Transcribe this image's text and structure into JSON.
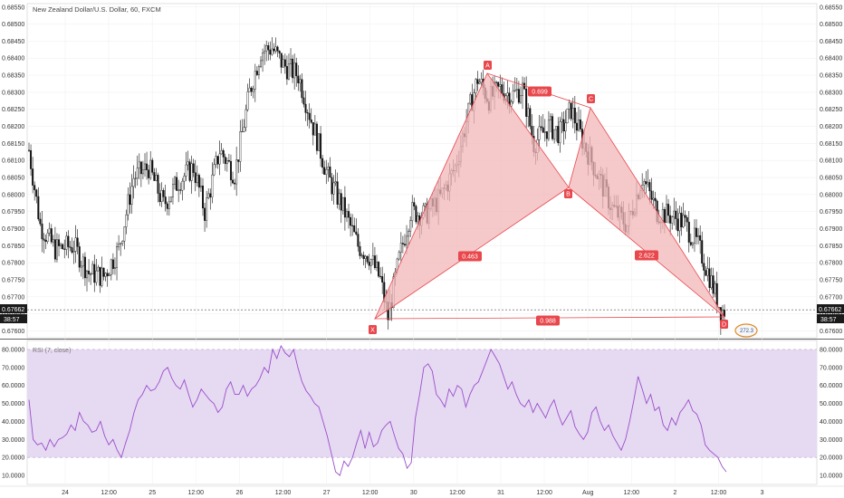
{
  "title": "New Zealand Dollar/U.S. Dollar, 60, FXCM",
  "price_panel": {
    "y_ticks": [
      "0.68550",
      "0.68500",
      "0.68450",
      "0.68400",
      "0.68350",
      "0.68300",
      "0.68250",
      "0.68200",
      "0.68150",
      "0.68100",
      "0.68050",
      "0.68000",
      "0.67950",
      "0.67900",
      "0.67850",
      "0.67800",
      "0.67750",
      "0.67700",
      "0.67650",
      "0.67600"
    ],
    "last_price": "0.67662",
    "countdown": "38:57"
  },
  "rsi_panel": {
    "label": "RSI (7, close)",
    "y_ticks": [
      "80.0000",
      "70.0000",
      "60.0000",
      "50.0000",
      "40.0000",
      "30.0000",
      "20.0000",
      "10.0000"
    ],
    "upper_band": 80,
    "lower_band": 20,
    "band_fill": "#e6d9f2",
    "line_color": "#9a4fc9"
  },
  "x_ticks": [
    "24",
    "12:00",
    "25",
    "12:00",
    "26",
    "12:00",
    "27",
    "12:00",
    "30",
    "12:00",
    "31",
    "12:00",
    "Aug",
    "12:00",
    "2",
    "12:00",
    "3"
  ],
  "pattern": {
    "color": "#e8474c",
    "fill": "#f2b6b8",
    "points": {
      "X": "X",
      "A": "A",
      "B": "B",
      "C": "C",
      "D": "D"
    },
    "ratios": {
      "xb": "0.463",
      "ac": "0.699",
      "bd": "2.622",
      "xd": "0.988"
    }
  },
  "badge": "272.3",
  "chart_data": {
    "type": "candlestick",
    "title": "New Zealand Dollar/U.S. Dollar, 60, FXCM",
    "timeframe": "60",
    "ylim": [
      0.6758,
      0.6856
    ],
    "last_close": 0.67662,
    "approx_close_path": [
      [
        0,
        0.6813
      ],
      [
        6,
        0.6791
      ],
      [
        14,
        0.6784
      ],
      [
        24,
        0.6785
      ],
      [
        32,
        0.6777
      ],
      [
        40,
        0.6776
      ],
      [
        48,
        0.6784
      ],
      [
        56,
        0.6805
      ],
      [
        64,
        0.6808
      ],
      [
        72,
        0.6797
      ],
      [
        80,
        0.6804
      ],
      [
        88,
        0.6808
      ],
      [
        94,
        0.6795
      ],
      [
        102,
        0.6813
      ],
      [
        110,
        0.6806
      ],
      [
        118,
        0.683
      ],
      [
        124,
        0.6842
      ],
      [
        130,
        0.6843
      ],
      [
        136,
        0.6838
      ],
      [
        144,
        0.6835
      ],
      [
        152,
        0.682
      ],
      [
        160,
        0.6805
      ],
      [
        168,
        0.6796
      ],
      [
        176,
        0.6785
      ],
      [
        182,
        0.6782
      ],
      [
        188,
        0.6775
      ],
      [
        192,
        0.6764
      ],
      [
        198,
        0.6781
      ],
      [
        204,
        0.6795
      ],
      [
        212,
        0.6794
      ],
      [
        220,
        0.6799
      ],
      [
        228,
        0.6808
      ],
      [
        236,
        0.6826
      ],
      [
        240,
        0.6834
      ],
      [
        246,
        0.6828
      ],
      [
        252,
        0.6831
      ],
      [
        258,
        0.6829
      ],
      [
        264,
        0.6831
      ],
      [
        270,
        0.6815
      ],
      [
        278,
        0.682
      ],
      [
        284,
        0.6818
      ],
      [
        290,
        0.6825
      ],
      [
        296,
        0.6816
      ],
      [
        304,
        0.6806
      ],
      [
        312,
        0.6796
      ],
      [
        320,
        0.6791
      ],
      [
        328,
        0.6805
      ],
      [
        336,
        0.6795
      ],
      [
        342,
        0.6794
      ],
      [
        350,
        0.6792
      ],
      [
        358,
        0.6785
      ],
      [
        364,
        0.6776
      ],
      [
        370,
        0.6766
      ]
    ],
    "rsi": {
      "name": "RSI (7, close)",
      "upper_band": 80,
      "lower_band": 20,
      "ylim": [
        5,
        85
      ],
      "values": [
        52,
        30,
        27,
        28,
        24,
        30,
        26,
        30,
        31,
        33,
        38,
        35,
        45,
        40,
        38,
        34,
        35,
        40,
        32,
        27,
        30,
        24,
        20,
        28,
        35,
        45,
        52,
        55,
        60,
        57,
        58,
        62,
        68,
        70,
        64,
        60,
        58,
        63,
        55,
        48,
        52,
        58,
        55,
        52,
        50,
        45,
        48,
        58,
        62,
        55,
        55,
        60,
        54,
        58,
        60,
        64,
        70,
        67,
        80,
        75,
        82,
        78,
        76,
        80,
        70,
        62,
        57,
        54,
        50,
        48,
        40,
        32,
        22,
        12,
        10,
        18,
        15,
        20,
        28,
        35,
        25,
        34,
        26,
        28,
        35,
        38,
        40,
        32,
        25,
        22,
        14,
        17,
        42,
        55,
        70,
        72,
        68,
        55,
        52,
        48,
        58,
        54,
        60,
        58,
        48,
        55,
        60,
        62,
        68,
        74,
        80,
        76,
        72,
        65,
        58,
        62,
        55,
        50,
        48,
        52,
        45,
        50,
        46,
        42,
        48,
        52,
        44,
        38,
        42,
        46,
        37,
        33,
        30,
        34,
        45,
        48,
        40,
        35,
        38,
        32,
        28,
        24,
        30,
        40,
        52,
        65,
        58,
        50,
        55,
        46,
        48,
        38,
        35,
        42,
        38,
        45,
        48,
        52,
        46,
        44,
        38,
        27,
        24,
        22,
        20,
        15,
        12
      ]
    }
  }
}
